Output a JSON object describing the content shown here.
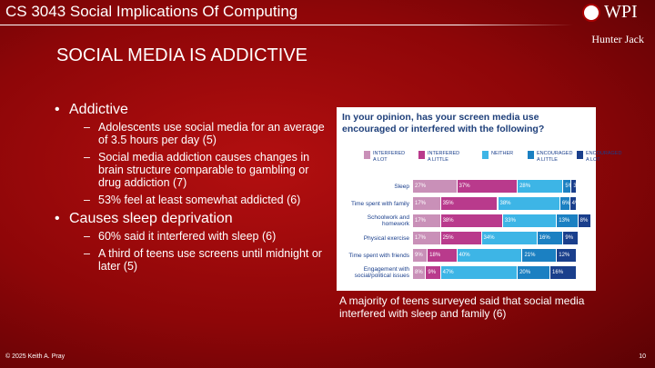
{
  "header": {
    "course": "CS 3043 Social Implications Of Computing",
    "logo": "WPI",
    "author": "Hunter Jack"
  },
  "slide": {
    "title": "SOCIAL MEDIA IS ADDICTIVE",
    "bullets": [
      {
        "text": "Addictive",
        "sub": [
          "Adolescents use social media for an average of 3.5 hours per day (5)",
          "Social media addiction causes changes in brain structure comparable to gambling or drug addiction (7)",
          "53% feel at least somewhat addicted (6)"
        ]
      },
      {
        "text": "Causes sleep deprivation",
        "sub": [
          "60% said it interfered with sleep (6)",
          "A third of teens use screens until midnight or later (5)"
        ]
      }
    ]
  },
  "chart_data": {
    "type": "bar",
    "orientation": "horizontal",
    "stacked": true,
    "title": "In your opinion, has your screen media use encouraged or interfered with the following?",
    "categories": [
      "Sleep",
      "Time spent with family",
      "Schoolwork and homework",
      "Physical exercise",
      "Time spent with friends",
      "Engagement with social/political issues"
    ],
    "series": [
      {
        "name": "INTERFERED A LOT",
        "color": "#c990b8",
        "values": [
          27,
          17,
          17,
          17,
          9,
          8
        ],
        "value_labels": [
          "27%",
          "17%",
          "17%",
          "17%",
          "9%",
          "8%"
        ]
      },
      {
        "name": "INTERFERED A LITTLE",
        "color": "#b93a8c",
        "values": [
          37,
          35,
          38,
          25,
          18,
          9
        ],
        "value_labels": [
          "37%",
          "35%",
          "38%",
          "25%",
          "18%",
          "9%"
        ]
      },
      {
        "name": "NEITHER",
        "color": "#3db5e6",
        "values": [
          28,
          38,
          33,
          34,
          40,
          47
        ],
        "value_labels": [
          "28%",
          "38%",
          "33%",
          "34%",
          "40%",
          "47%"
        ]
      },
      {
        "name": "ENCOURAGED A LITTLE",
        "color": "#1b80c2",
        "values": [
          5,
          6,
          13,
          16,
          21,
          20
        ],
        "value_labels": [
          "5%",
          "6%",
          "13%",
          "16%",
          "21%",
          "20%"
        ]
      },
      {
        "name": "ENCOURAGED A LOT",
        "color": "#1a3f8c",
        "values": [
          3,
          4,
          8,
          9,
          12,
          16
        ],
        "value_labels": [
          "3%",
          "4%",
          "8%",
          "9%",
          "12%",
          "16%"
        ]
      }
    ]
  },
  "caption": "A majority of teens surveyed said that social media interfered with sleep and family (6)",
  "footer": {
    "copyright": "© 2025 Keith A. Pray",
    "page": 10
  }
}
